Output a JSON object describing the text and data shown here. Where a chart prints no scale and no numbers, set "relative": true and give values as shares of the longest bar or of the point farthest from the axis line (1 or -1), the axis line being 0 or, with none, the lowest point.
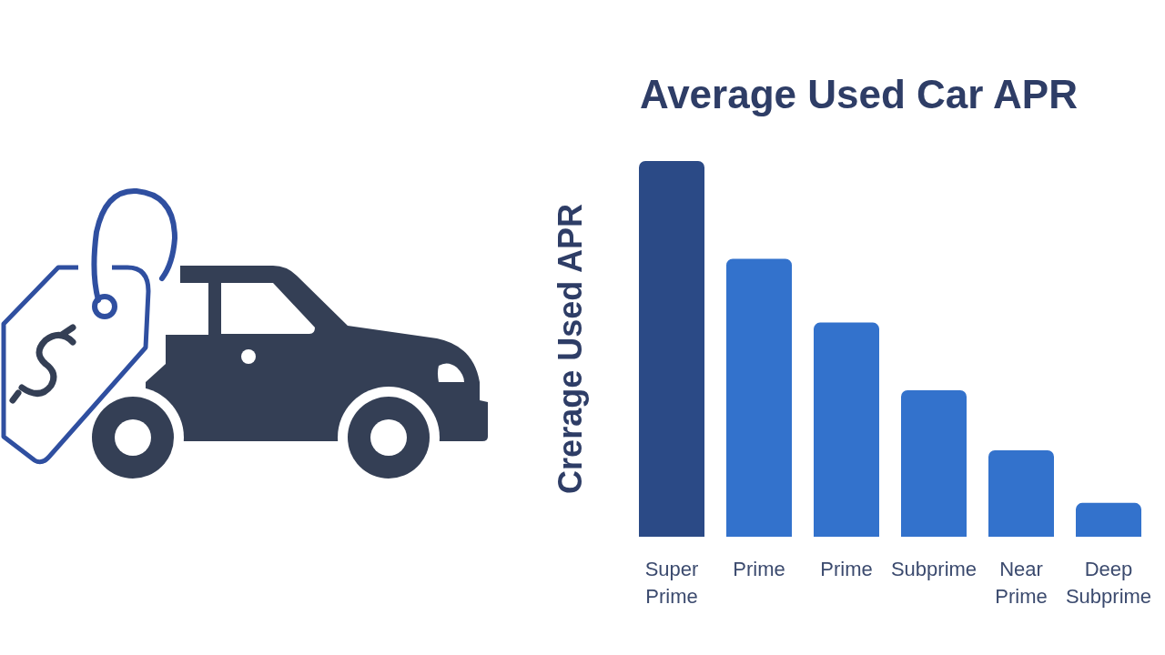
{
  "chart_data": {
    "type": "bar",
    "title": "Average Used Car APR",
    "ylabel": "Crerage Used APR",
    "categories": [
      "Super Prime",
      "Prime",
      "Prime",
      "Subprime",
      "Near Prime",
      "Deep Subprime"
    ],
    "values": [
      1,
      0.74,
      0.57,
      0.39,
      0.23,
      0.09
    ],
    "colors": [
      "#2b4a86",
      "#3372cc",
      "#3372cc",
      "#3372cc",
      "#3372cc",
      "#3372cc"
    ],
    "relative": true,
    "grid": false
  }
}
